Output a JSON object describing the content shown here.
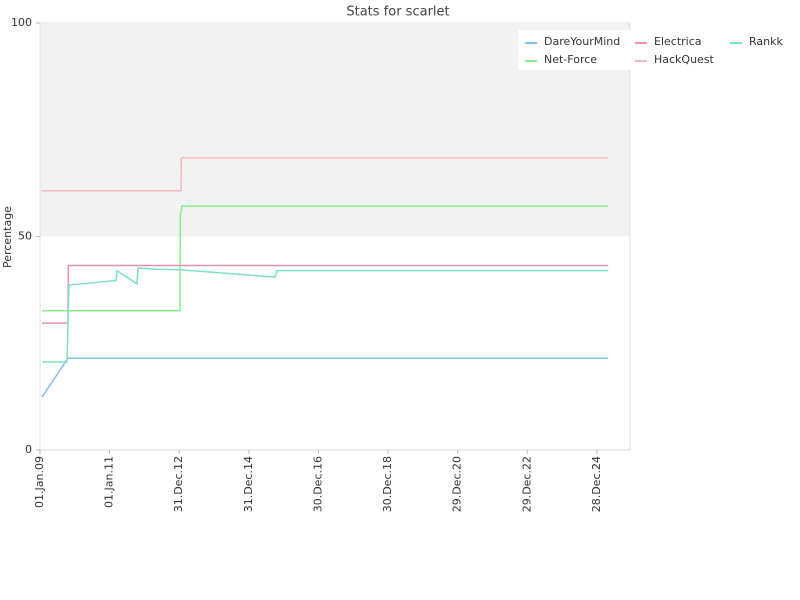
{
  "chart_data": {
    "type": "line",
    "title": "Stats for scarlet",
    "y_label": "Percentage",
    "xlim": [
      "2009-01-01",
      "2025-12-10"
    ],
    "xticks": [
      {
        "value": "2009-01-01",
        "label": "01.Jan.09"
      },
      {
        "value": "2011-01-01",
        "label": "01.Jan.11"
      },
      {
        "value": "2012-12-31",
        "label": "31.Dec.12"
      },
      {
        "value": "2014-12-31",
        "label": "31.Dec.14"
      },
      {
        "value": "2016-12-30",
        "label": "30.Dec.16"
      },
      {
        "value": "2018-12-30",
        "label": "30.Dec.18"
      },
      {
        "value": "2020-12-29",
        "label": "29.Dec.20"
      },
      {
        "value": "2022-12-29",
        "label": "29.Dec.22"
      },
      {
        "value": "2024-12-28",
        "label": "28.Dec.24"
      }
    ],
    "ylim": [
      0,
      100
    ],
    "yticks": [
      0,
      50,
      100
    ],
    "band": [
      50,
      100
    ],
    "band_color": "#f2f2f2",
    "series": [
      {
        "name": "DareYourMind",
        "color": "#86bde6",
        "x": [
          "2009-01-22",
          "2009-10-22",
          "2025-04-25"
        ],
        "values": [
          12.4,
          21.5,
          21.5
        ]
      },
      {
        "name": "Net-Force",
        "color": "#8ee88e",
        "x": [
          "2009-01-22",
          "2013-01-08",
          "2013-01-11",
          "2013-01-30",
          "2025-04-25"
        ],
        "values": [
          32.6,
          32.6,
          55,
          57.1,
          57.1
        ]
      },
      {
        "name": "Electrica",
        "color": "#e88fb4",
        "x": [
          "2009-01-22",
          "2009-10-22",
          "2009-10-25",
          "2025-04-25"
        ],
        "values": [
          29.7,
          29.7,
          43.2,
          43.2
        ]
      },
      {
        "name": "HackQuest",
        "color": "#f5b8c0",
        "x": [
          "2009-01-22",
          "2013-01-19",
          "2013-01-22",
          "2025-04-25"
        ],
        "values": [
          60.7,
          60.7,
          68.4,
          68.4
        ]
      },
      {
        "name": "Rankk",
        "color": "#7fe0c4",
        "x": [
          "2009-01-22",
          "2009-10-11",
          "2009-11-01",
          "2011-03-09",
          "2011-03-20",
          "2011-10-15",
          "2011-10-26",
          "2012-06-13",
          "2013-01-08",
          "2015-10-01",
          "2015-10-22",
          "2025-04-25"
        ],
        "values": [
          20.6,
          20.6,
          38.6,
          39.7,
          42,
          38.9,
          42.6,
          42.3,
          42.2,
          40.5,
          42,
          42
        ]
      }
    ]
  }
}
